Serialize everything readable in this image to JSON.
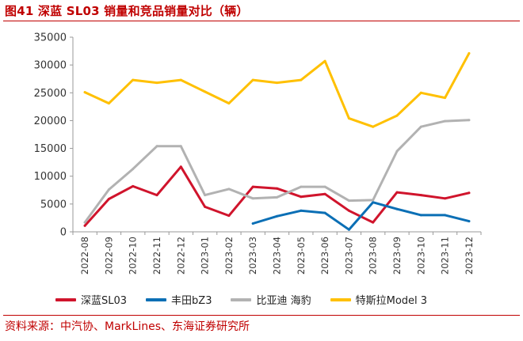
{
  "header": {
    "title": "图41  深蓝 SL03 销量和竞品销量对比（辆）"
  },
  "footer": {
    "source": "资料来源：中汽协、MarkLines、东海证券研究所"
  },
  "chart_data": {
    "type": "line",
    "title": "",
    "xlabel": "",
    "ylabel": "",
    "ylim": [
      0,
      35000
    ],
    "yticks": [
      0,
      5000,
      10000,
      15000,
      20000,
      25000,
      30000,
      35000
    ],
    "grid": false,
    "legend_position": "bottom",
    "categories": [
      "2022-08",
      "2022-09",
      "2022-10",
      "2022-11",
      "2022-12",
      "2023-01",
      "2023-02",
      "2023-03",
      "2023-04",
      "2023-05",
      "2023-06",
      "2023-07",
      "2023-08",
      "2023-09",
      "2023-10",
      "2023-11",
      "2023-12"
    ],
    "series": [
      {
        "name": "深蓝SL03",
        "color": "#d0142c",
        "values": [
          1100,
          5900,
          8200,
          6600,
          11700,
          4500,
          2900,
          8100,
          7800,
          6300,
          6800,
          3800,
          1700,
          7100,
          6600,
          6000,
          7000
        ]
      },
      {
        "name": "丰田bZ3",
        "color": "#0b6fb5",
        "values": [
          null,
          null,
          null,
          null,
          null,
          null,
          null,
          1500,
          2800,
          3800,
          3400,
          400,
          5300,
          4100,
          3000,
          3000,
          1900
        ]
      },
      {
        "name": "比亚迪 海豹",
        "color": "#b2b2b2",
        "values": [
          1700,
          7600,
          11300,
          15400,
          15400,
          6600,
          7700,
          6000,
          6200,
          8100,
          8100,
          5600,
          5700,
          14500,
          18900,
          19900,
          20100
        ]
      },
      {
        "name": "特斯拉Model 3",
        "color": "#ffc000",
        "values": [
          25100,
          23100,
          27300,
          26800,
          27300,
          25200,
          23100,
          27300,
          26800,
          27300,
          30700,
          20400,
          18900,
          20900,
          25000,
          24100,
          32100
        ]
      }
    ]
  }
}
